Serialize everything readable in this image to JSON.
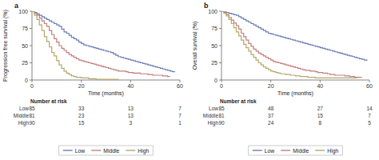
{
  "chart_data": [
    {
      "type": "step",
      "title": "a",
      "xlabel": "Time (months)",
      "ylabel": "Progression free survival (%)",
      "xlim": [
        0,
        60
      ],
      "ylim": [
        0,
        100
      ],
      "xticks": [
        0,
        20,
        40,
        60
      ],
      "yticks": [
        0,
        25,
        50,
        75,
        100
      ],
      "grid": false,
      "legend": "bottom",
      "series": [
        {
          "name": "Low",
          "color": "#6b7fb5",
          "x": [
            0,
            1,
            2,
            3,
            4,
            5,
            6,
            7,
            8,
            9,
            10,
            11,
            12,
            13,
            14,
            15,
            16,
            17,
            18,
            19,
            20,
            21,
            22,
            23,
            24,
            25,
            26,
            27,
            28,
            29,
            30,
            31,
            32,
            33,
            34,
            35,
            36,
            37,
            38,
            39,
            40,
            41,
            42,
            43,
            44,
            45,
            46,
            47,
            48,
            49,
            50,
            51,
            52,
            53,
            54,
            55,
            56,
            57,
            58
          ],
          "values": [
            100,
            98,
            96,
            94,
            92,
            90,
            88,
            86,
            84,
            82,
            80,
            78,
            74,
            70,
            68,
            65,
            62,
            60,
            58,
            55,
            53,
            51,
            50,
            49,
            48,
            47,
            46,
            45,
            44,
            43,
            42,
            41,
            40,
            38,
            36,
            34,
            33,
            32,
            31,
            30,
            29,
            28,
            27,
            26,
            25,
            24,
            23,
            22,
            21,
            20,
            19,
            18,
            17,
            16,
            15,
            14,
            13,
            12,
            12
          ]
        },
        {
          "name": "Middle",
          "color": "#c47e7e",
          "x": [
            0,
            1,
            2,
            3,
            4,
            5,
            6,
            7,
            8,
            9,
            10,
            11,
            12,
            13,
            14,
            15,
            16,
            17,
            18,
            19,
            20,
            21,
            22,
            23,
            24,
            25,
            26,
            27,
            28,
            29,
            30,
            31,
            32,
            33,
            34,
            35,
            36,
            37,
            38,
            39,
            40,
            41,
            42,
            43,
            44,
            45,
            46,
            47,
            48,
            49,
            50,
            51,
            52,
            53,
            54,
            55,
            56
          ],
          "values": [
            100,
            97,
            94,
            90,
            86,
            82,
            78,
            72,
            66,
            60,
            55,
            50,
            46,
            43,
            40,
            37,
            35,
            33,
            31,
            29,
            28,
            27,
            26,
            25,
            24,
            23,
            22,
            21,
            20,
            19,
            18,
            17,
            16,
            15,
            14,
            13,
            13,
            13,
            12,
            11,
            11,
            10,
            10,
            10,
            9,
            9,
            9,
            8,
            8,
            7,
            7,
            7,
            7,
            6,
            6,
            5,
            5
          ]
        },
        {
          "name": "High",
          "color": "#b5a96b",
          "x": [
            0,
            1,
            2,
            3,
            4,
            5,
            6,
            7,
            8,
            9,
            10,
            11,
            12,
            13,
            14,
            15,
            16,
            17,
            18,
            19,
            20,
            21,
            22,
            23,
            24,
            25,
            26,
            27,
            28,
            29,
            30,
            31,
            32,
            33,
            34,
            35
          ],
          "values": [
            100,
            94,
            88,
            80,
            72,
            63,
            56,
            48,
            40,
            35,
            28,
            22,
            17,
            13,
            10,
            8,
            6,
            5,
            4,
            4,
            3,
            3,
            3,
            2,
            2,
            2,
            1,
            1,
            1,
            1,
            1,
            1,
            1,
            1,
            1,
            0
          ]
        }
      ],
      "risk_table": {
        "title": "Number at risk",
        "x": [
          0,
          20,
          40,
          60
        ],
        "rows": [
          {
            "name": "Low",
            "values": [
              85,
              33,
              13,
              7
            ]
          },
          {
            "name": "Middle",
            "values": [
              81,
              23,
              13,
              7
            ]
          },
          {
            "name": "High",
            "values": [
              90,
              15,
              3,
              1
            ]
          }
        ]
      }
    },
    {
      "type": "step",
      "title": "b",
      "xlabel": "Time (months)",
      "ylabel": "Overall survival (%)",
      "xlim": [
        0,
        60
      ],
      "ylim": [
        0,
        100
      ],
      "xticks": [
        0,
        20,
        40,
        60
      ],
      "yticks": [
        0,
        25,
        50,
        75,
        100
      ],
      "grid": false,
      "legend": "bottom",
      "series": [
        {
          "name": "Low",
          "color": "#6b7fb5",
          "x": [
            0,
            1,
            2,
            3,
            4,
            5,
            6,
            7,
            8,
            9,
            10,
            11,
            12,
            13,
            14,
            15,
            16,
            17,
            18,
            19,
            20,
            21,
            22,
            23,
            24,
            25,
            26,
            27,
            28,
            29,
            30,
            31,
            32,
            33,
            34,
            35,
            36,
            37,
            38,
            39,
            40,
            41,
            42,
            43,
            44,
            45,
            46,
            47,
            48,
            49,
            50,
            51,
            52,
            53,
            54,
            55,
            56,
            57,
            58,
            59
          ],
          "values": [
            100,
            99,
            98,
            97,
            96,
            95,
            94,
            92,
            90,
            88,
            86,
            84,
            82,
            80,
            78,
            76,
            74,
            72,
            70,
            68,
            67,
            66,
            65,
            64,
            63,
            62,
            61,
            60,
            59,
            58,
            57,
            56,
            55,
            54,
            53,
            52,
            51,
            50,
            49,
            48,
            47,
            46,
            45,
            44,
            43,
            42,
            41,
            40,
            39,
            38,
            37,
            36,
            35,
            34,
            33,
            32,
            31,
            30,
            29,
            28
          ]
        },
        {
          "name": "Middle",
          "color": "#c47e7e",
          "x": [
            0,
            1,
            2,
            3,
            4,
            5,
            6,
            7,
            8,
            9,
            10,
            11,
            12,
            13,
            14,
            15,
            16,
            17,
            18,
            19,
            20,
            21,
            22,
            23,
            24,
            25,
            26,
            27,
            28,
            29,
            30,
            31,
            32,
            33,
            34,
            35,
            36,
            37,
            38,
            39,
            40,
            41,
            42,
            43,
            44,
            45,
            46,
            47,
            48,
            49,
            50,
            51,
            52,
            53,
            54,
            55,
            56,
            57
          ],
          "values": [
            100,
            98,
            95,
            91,
            87,
            83,
            79,
            74,
            68,
            63,
            58,
            53,
            49,
            45,
            42,
            39,
            37,
            35,
            33,
            31,
            29,
            27,
            26,
            25,
            24,
            23,
            22,
            21,
            20,
            19,
            18,
            17,
            16,
            15,
            14,
            14,
            13,
            13,
            12,
            11,
            11,
            10,
            10,
            9,
            8,
            8,
            7,
            7,
            7,
            7,
            6,
            6,
            5,
            5,
            4,
            4,
            4,
            4
          ]
        },
        {
          "name": "High",
          "color": "#b5a96b",
          "x": [
            0,
            1,
            2,
            3,
            4,
            5,
            6,
            7,
            8,
            9,
            10,
            11,
            12,
            13,
            14,
            15,
            16,
            17,
            18,
            19,
            20,
            21,
            22,
            23,
            24,
            25,
            26,
            27,
            28,
            29,
            30,
            31,
            32,
            33,
            34,
            35,
            36,
            37,
            38,
            39,
            40,
            41,
            42,
            43,
            44,
            45,
            46,
            47,
            48,
            49,
            50,
            51,
            52,
            53,
            54,
            55
          ],
          "values": [
            100,
            97,
            93,
            88,
            82,
            76,
            70,
            64,
            58,
            52,
            47,
            42,
            37,
            33,
            29,
            25,
            22,
            19,
            17,
            15,
            13,
            12,
            11,
            10,
            9,
            9,
            8,
            8,
            7,
            7,
            6,
            6,
            5,
            5,
            5,
            4,
            4,
            4,
            3,
            3,
            3,
            3,
            3,
            3,
            3,
            3,
            3,
            3,
            3,
            3,
            3,
            3,
            3,
            3,
            3,
            3
          ]
        }
      ],
      "risk_table": {
        "title": "Number at risk",
        "x": [
          0,
          20,
          40,
          60
        ],
        "rows": [
          {
            "name": "Low",
            "values": [
              85,
              48,
              27,
              14
            ]
          },
          {
            "name": "Middle",
            "values": [
              81,
              37,
              15,
              7
            ]
          },
          {
            "name": "High",
            "values": [
              90,
              24,
              8,
              5
            ]
          }
        ]
      }
    }
  ]
}
